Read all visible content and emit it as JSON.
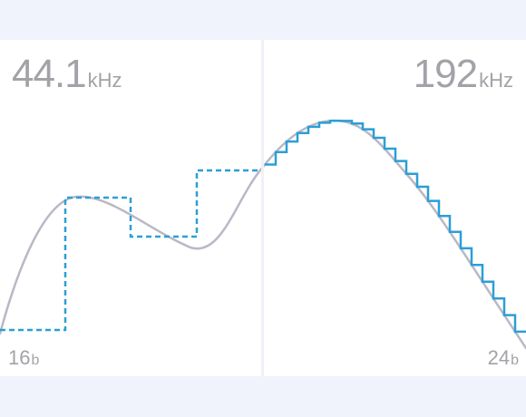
{
  "left_panel": {
    "sample_rate": "44.1",
    "sample_rate_unit": "kHz",
    "bit_depth": "16",
    "bit_depth_unit": "b"
  },
  "right_panel": {
    "sample_rate": "192",
    "sample_rate_unit": "kHz",
    "bit_depth": "24",
    "bit_depth_unit": "b"
  },
  "colors": {
    "background": "#f0f3fb",
    "panel": "#ffffff",
    "analog_curve": "#bbb8c6",
    "sampled_signal": "#2a9fd6",
    "label_text": "#a2a2a8"
  }
}
